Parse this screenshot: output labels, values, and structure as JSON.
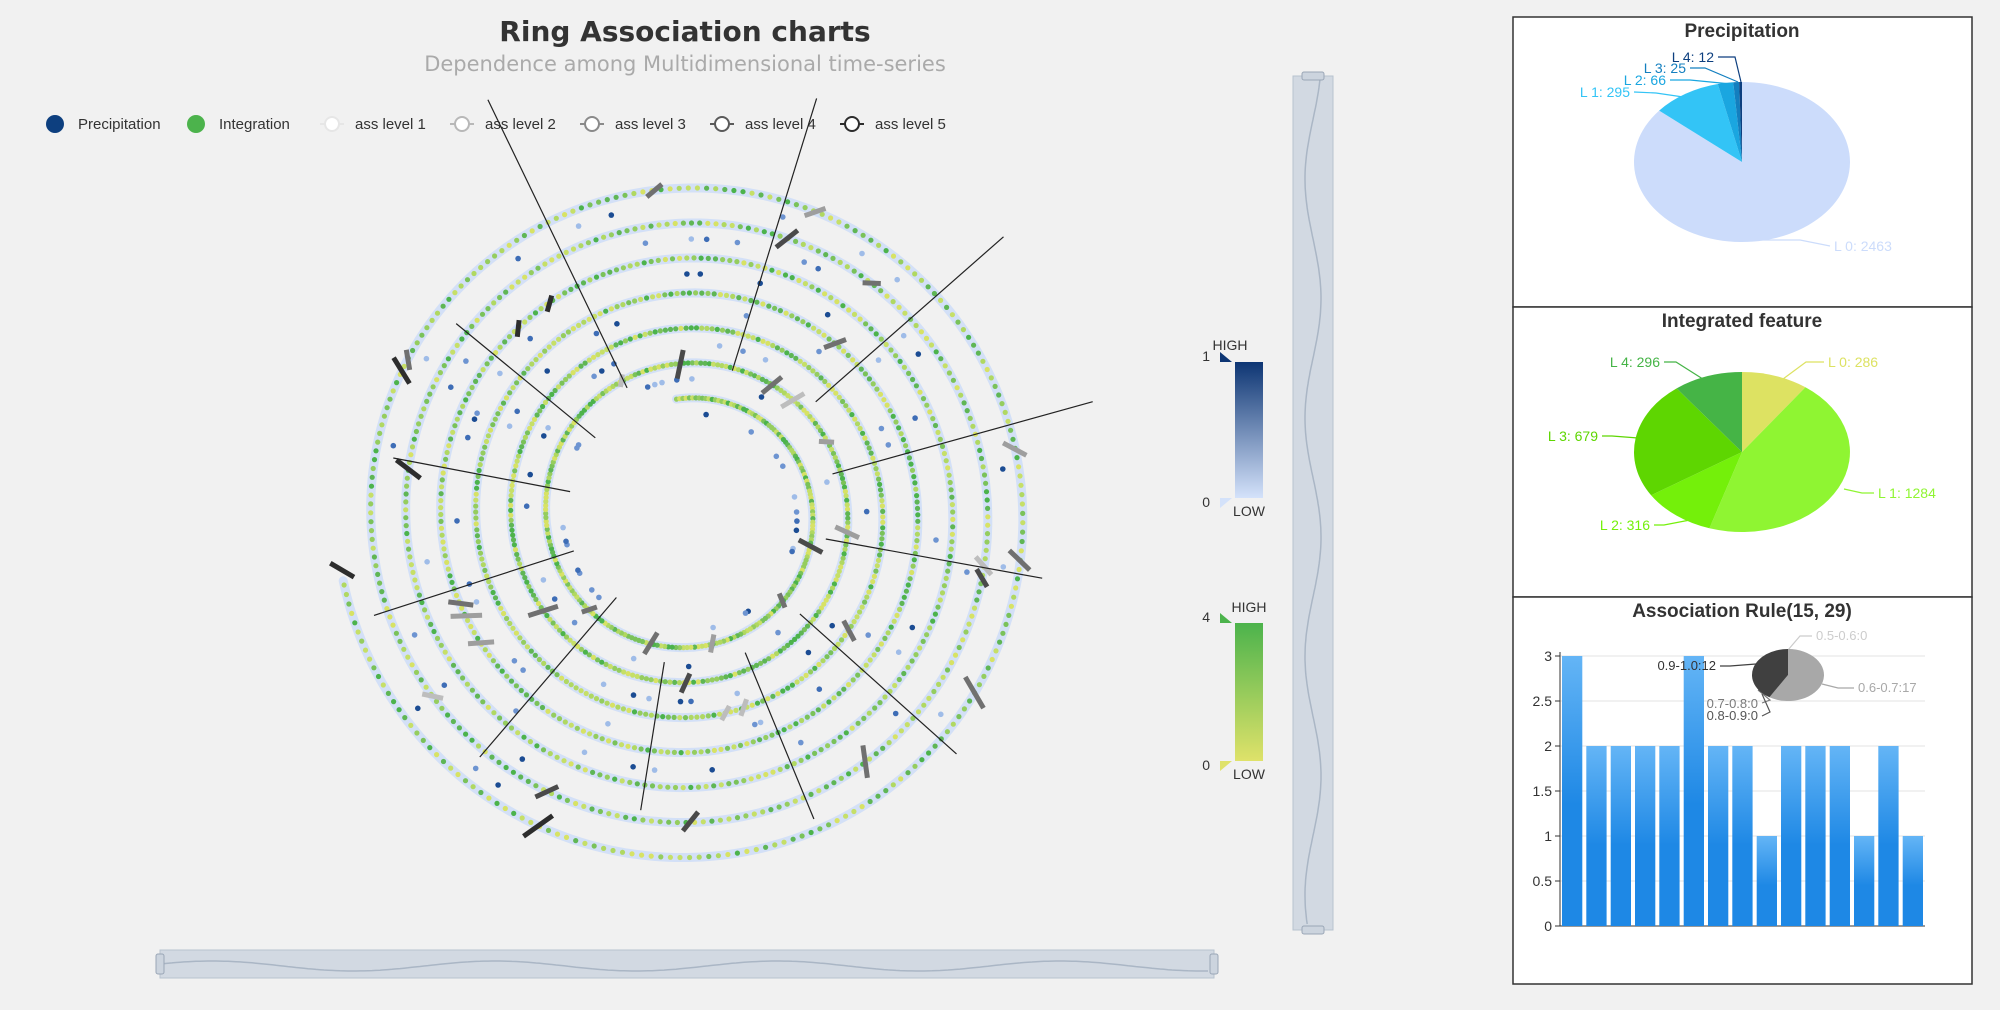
{
  "main": {
    "title": "Ring Association charts",
    "subtitle": "Dependence among Multidimensional time-series",
    "legend": [
      {
        "label": "Precipitation",
        "kind": "dot",
        "color": "#0d3f7f"
      },
      {
        "label": "Integration",
        "kind": "dot",
        "color": "#4cb34c"
      },
      {
        "label": "ass level 1",
        "kind": "line",
        "color": "#e6e6e6"
      },
      {
        "label": "ass level 2",
        "kind": "line",
        "color": "#b8b8b8"
      },
      {
        "label": "ass level 3",
        "kind": "line",
        "color": "#8a8a8a"
      },
      {
        "label": "ass level 4",
        "kind": "line",
        "color": "#5a5a5a"
      },
      {
        "label": "ass level 5",
        "kind": "line",
        "color": "#2d2d2d"
      }
    ]
  },
  "visual_maps": [
    {
      "name": "precipitation",
      "max": "1",
      "min": "0",
      "high": "HIGH",
      "low": "LOW",
      "color_high": "#0d3573",
      "color_low": "#d4e2fa"
    },
    {
      "name": "integration",
      "max": "4",
      "min": "0",
      "high": "HIGH",
      "low": "LOW",
      "color_high": "#4cb34c",
      "color_low": "#dfe26a"
    }
  ],
  "colors": {
    "ring_track": "#d3e0f7",
    "datazoom": "#ccd4de",
    "bar": "#1e88e5"
  },
  "chart_data": [
    {
      "type": "pie",
      "title": "Precipitation",
      "slices": [
        {
          "label": "L 0: 2463",
          "value": 2463,
          "color": "#ccdcfb"
        },
        {
          "label": "L 1: 295",
          "value": 295,
          "color": "#33c4f6"
        },
        {
          "label": "L 2: 66",
          "value": 66,
          "color": "#1aa6e0"
        },
        {
          "label": "L 3: 25",
          "value": 25,
          "color": "#137fbf"
        },
        {
          "label": "L 4: 12",
          "value": 12,
          "color": "#0d3f7f"
        }
      ]
    },
    {
      "type": "pie",
      "title": "Integrated feature",
      "slices": [
        {
          "label": "L 0: 286",
          "value": 286,
          "color": "#dde262"
        },
        {
          "label": "L 1: 1284",
          "value": 1284,
          "color": "#8ff532"
        },
        {
          "label": "L 2: 316",
          "value": 316,
          "color": "#74f00a"
        },
        {
          "label": "L 3: 679",
          "value": 679,
          "color": "#5ed601"
        },
        {
          "label": "L 4: 296",
          "value": 296,
          "color": "#45b446"
        }
      ]
    },
    {
      "type": "bar",
      "title": "Association Rule(15, 29)",
      "values": [
        3,
        2,
        2,
        2,
        2,
        3,
        2,
        2,
        1,
        2,
        2,
        2,
        1,
        2,
        1
      ],
      "ylim": [
        0,
        3
      ],
      "yticks": [
        "0",
        "0.5",
        "1",
        "1.5",
        "2",
        "2.5",
        "3"
      ],
      "inset_pie": {
        "type": "pie",
        "slices": [
          {
            "label": "0.5-0.6:0",
            "value": 0,
            "color": "#cccccc"
          },
          {
            "label": "0.6-0.7:17",
            "value": 17,
            "color": "#a8a8a8"
          },
          {
            "label": "0.7-0.8:0",
            "value": 0,
            "color": "#7a7a7a"
          },
          {
            "label": "0.8-0.9:0",
            "value": 0,
            "color": "#555555"
          },
          {
            "label": "0.9-1.0:12",
            "value": 12,
            "color": "#404040"
          }
        ]
      }
    }
  ]
}
